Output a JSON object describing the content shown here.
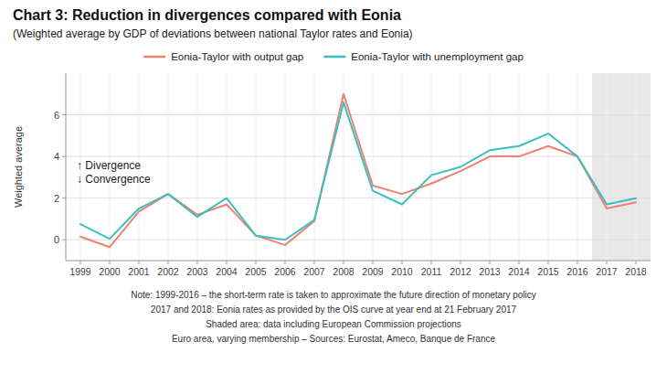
{
  "chart_data": {
    "type": "line",
    "title": "Chart 3: Reduction in divergences compared with Eonia",
    "subtitle": "(Weighted average by GDP of deviations between national Taylor rates and Eonia)",
    "ylabel": "Weighted average",
    "annotations": [
      "↑ Divergence",
      "↓ Convergence"
    ],
    "notes": [
      "Note: 1999-2016 – the short-term rate is taken to approximate the future direction of monetary policy",
      "2017 and 2018: Eonia rates as provided by the OIS curve at year end at 21 February 2017",
      "Shaded area: data including European Commission projections",
      "Euro area, varying membership – Sources: Eurostat, Ameco, Banque de France"
    ],
    "x": [
      1999,
      2000,
      2001,
      2002,
      2003,
      2004,
      2005,
      2006,
      2007,
      2008,
      2009,
      2010,
      2011,
      2012,
      2013,
      2014,
      2015,
      2016,
      2017,
      2018
    ],
    "series": [
      {
        "name": "Eonia-Taylor with output gap",
        "color": "#F08070",
        "values": [
          0.15,
          -0.35,
          1.35,
          2.2,
          1.2,
          1.7,
          0.2,
          -0.25,
          0.9,
          7.0,
          2.6,
          2.2,
          2.7,
          3.3,
          4.0,
          4.0,
          4.5,
          4.0,
          1.5,
          1.8
        ]
      },
      {
        "name": "Eonia-Taylor with unemployment gap",
        "color": "#3BBFBF",
        "values": [
          0.75,
          0.05,
          1.5,
          2.2,
          1.1,
          2.0,
          0.2,
          0.0,
          0.95,
          6.6,
          2.35,
          1.7,
          3.1,
          3.5,
          4.3,
          4.5,
          5.1,
          4.0,
          1.7,
          2.0
        ]
      }
    ],
    "shaded": {
      "range": [
        2016.5,
        2018.5
      ],
      "color": "#e8e8e8"
    },
    "xlim": [
      1998.5,
      2018.5
    ],
    "xticks": [
      1999,
      2000,
      2001,
      2002,
      2003,
      2004,
      2005,
      2006,
      2007,
      2008,
      2009,
      2010,
      2011,
      2012,
      2013,
      2014,
      2015,
      2016,
      2017,
      2018
    ],
    "ylim": [
      -1,
      8
    ],
    "yticks": [
      0,
      2,
      4,
      6
    ],
    "grid": true,
    "legend": "top"
  }
}
